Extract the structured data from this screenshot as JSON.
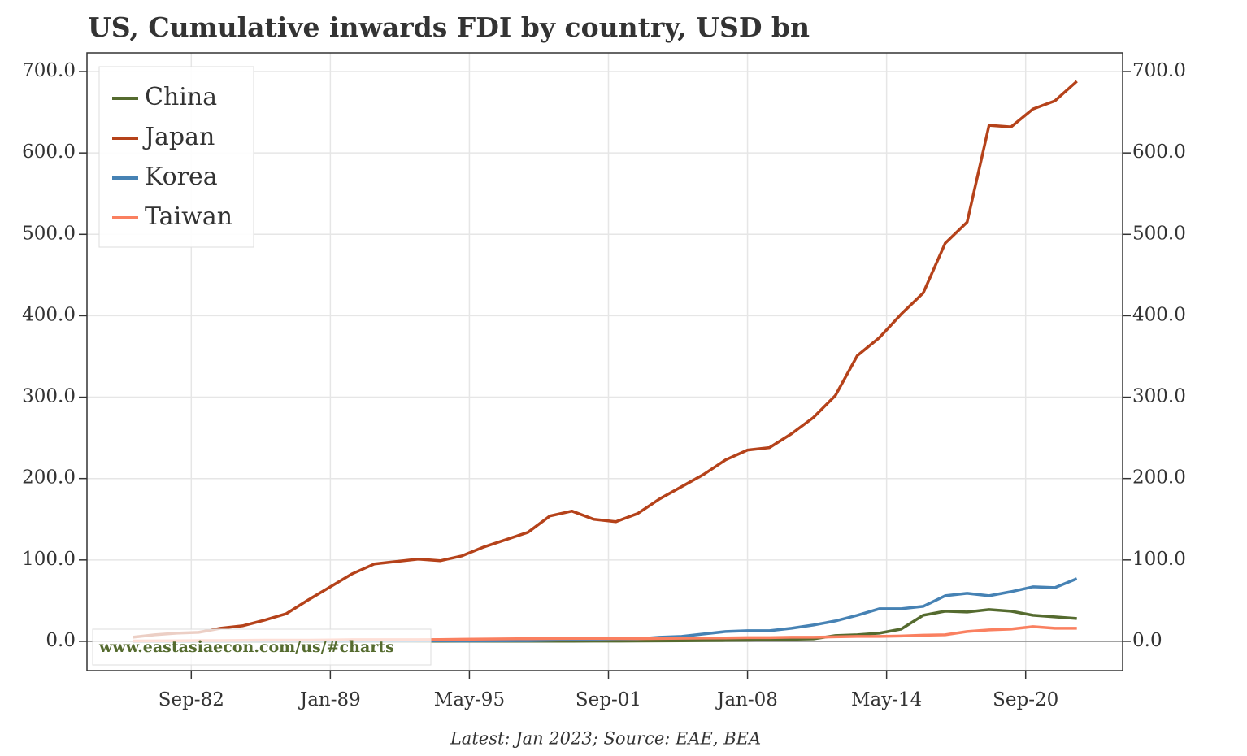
{
  "chart_data": {
    "type": "line",
    "title": "US, Cumulative inwards FDI by country, USD bn",
    "footnote": "Latest: Jan 2023; Source: EAE, BEA",
    "watermark": "www.eastasiaecon.com/us/#charts",
    "x": [
      "1980-01",
      "1981-01",
      "1982-01",
      "1983-01",
      "1984-01",
      "1985-01",
      "1986-01",
      "1987-01",
      "1988-01",
      "1989-01",
      "1990-01",
      "1991-01",
      "1992-01",
      "1993-01",
      "1994-01",
      "1995-01",
      "1996-01",
      "1997-01",
      "1998-01",
      "1999-01",
      "2000-01",
      "2001-01",
      "2002-01",
      "2003-01",
      "2004-01",
      "2005-01",
      "2006-01",
      "2007-01",
      "2008-01",
      "2009-01",
      "2010-01",
      "2011-01",
      "2012-01",
      "2013-01",
      "2014-01",
      "2015-01",
      "2016-01",
      "2017-01",
      "2018-01",
      "2019-01",
      "2020-01",
      "2021-01",
      "2022-01",
      "2023-01"
    ],
    "series": [
      {
        "name": "China",
        "color": "#556b2f",
        "values": [
          0.1,
          0.1,
          0.1,
          0.1,
          0.1,
          0.1,
          0.1,
          0.1,
          0.1,
          0.1,
          0.1,
          0.2,
          0.2,
          0.2,
          0.2,
          0.2,
          0.2,
          0.3,
          0.3,
          0.3,
          0.3,
          0.4,
          0.4,
          0.5,
          0.6,
          0.8,
          1,
          1.2,
          1.5,
          2,
          2.5,
          3,
          7,
          8,
          10,
          15,
          32,
          37,
          36,
          39,
          37,
          32,
          30,
          28
        ]
      },
      {
        "name": "Japan",
        "color": "#b5421a",
        "values": [
          5,
          8,
          10,
          11,
          16,
          19,
          26,
          34,
          51,
          67,
          83,
          95,
          98,
          101,
          99,
          105,
          116,
          125,
          134,
          154,
          160,
          150,
          147,
          157,
          175,
          190,
          205,
          223,
          235,
          238,
          255,
          275,
          302,
          351,
          373,
          402,
          428,
          489,
          515,
          634,
          632,
          654,
          664,
          688
        ]
      },
      {
        "name": "Korea",
        "color": "#4682b4",
        "values": [
          0.1,
          0.2,
          0.2,
          0.3,
          0.3,
          0.4,
          0.5,
          0.6,
          0.8,
          0.5,
          0.4,
          0.5,
          0.6,
          0.7,
          0.8,
          0.5,
          0.6,
          0.8,
          0.9,
          1.5,
          2,
          2.5,
          3,
          3,
          5,
          6,
          9,
          12,
          13,
          13,
          16,
          20,
          25,
          32,
          40,
          40,
          43,
          56,
          59,
          56,
          61,
          67,
          66,
          77
        ]
      },
      {
        "name": "Taiwan",
        "color": "#fa8060",
        "values": [
          0.5,
          0.6,
          0.8,
          1,
          1,
          1.2,
          1.5,
          1.5,
          1.5,
          1.8,
          2,
          2,
          2,
          2,
          2.2,
          2.5,
          2.8,
          3,
          3.2,
          3.4,
          3.5,
          3.5,
          3.4,
          3.3,
          3.5,
          3.8,
          4,
          4.2,
          4.5,
          4.5,
          5,
          5,
          5.5,
          6,
          6,
          6.5,
          7.5,
          8,
          12,
          14,
          15,
          18,
          16,
          16
        ]
      }
    ],
    "xlim": [
      "1977-12",
      "2025-02"
    ],
    "xticks": [
      {
        "value": "1982-09",
        "label": "Sep-82"
      },
      {
        "value": "1989-01",
        "label": "Jan-89"
      },
      {
        "value": "1995-05",
        "label": "May-95"
      },
      {
        "value": "2001-09",
        "label": "Sep-01"
      },
      {
        "value": "2008-01",
        "label": "Jan-08"
      },
      {
        "value": "2014-05",
        "label": "May-14"
      },
      {
        "value": "2020-09",
        "label": "Sep-20"
      }
    ],
    "ylim": [
      -36,
      723
    ],
    "yticks": [
      {
        "value": 0,
        "label": "0.0"
      },
      {
        "value": 100,
        "label": "100.0"
      },
      {
        "value": 200,
        "label": "200.0"
      },
      {
        "value": 300,
        "label": "300.0"
      },
      {
        "value": 400,
        "label": "400.0"
      },
      {
        "value": 500,
        "label": "500.0"
      },
      {
        "value": 600,
        "label": "600.0"
      },
      {
        "value": 700,
        "label": "700.0"
      }
    ],
    "y2lim": [
      -36,
      723
    ],
    "y2ticks": [
      {
        "value": 0,
        "label": "0.0"
      },
      {
        "value": 100,
        "label": "100.0"
      },
      {
        "value": 200,
        "label": "200.0"
      },
      {
        "value": 300,
        "label": "300.0"
      },
      {
        "value": 400,
        "label": "400.0"
      },
      {
        "value": 500,
        "label": "500.0"
      },
      {
        "value": 600,
        "label": "600.0"
      },
      {
        "value": 700,
        "label": "700.0"
      }
    ],
    "grid": true,
    "legend": "upper left"
  }
}
